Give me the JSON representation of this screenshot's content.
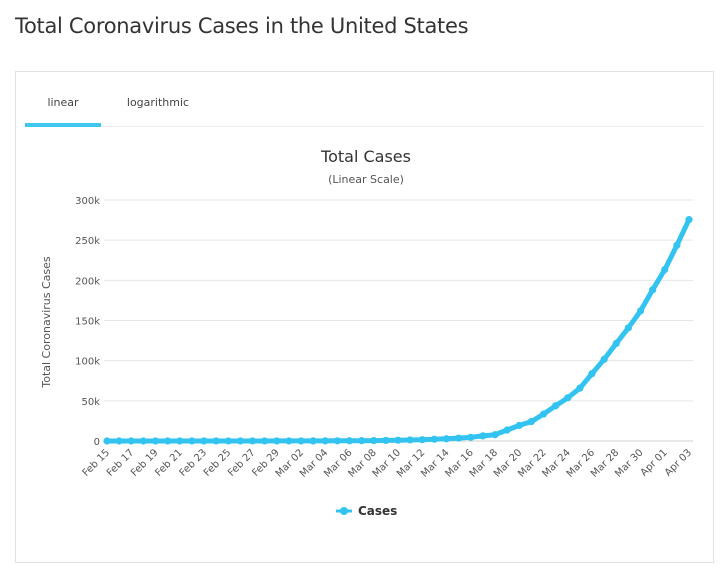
{
  "page": {
    "title": "Total Coronavirus Cases in the United States"
  },
  "tabs": [
    {
      "label": "linear",
      "active": true
    },
    {
      "label": "logarithmic",
      "active": false
    }
  ],
  "colors": {
    "series": "#33c3f0",
    "tab_active": "#3fc7ee",
    "grid": "#e6e6e6"
  },
  "chart_data": {
    "type": "line",
    "title": "Total Cases",
    "subtitle": "(Linear Scale)",
    "ylabel": "Total Coronavirus Cases",
    "xlabel": "",
    "ylim": [
      0,
      300000
    ],
    "y_ticks": [
      {
        "value": 0,
        "label": "0"
      },
      {
        "value": 50000,
        "label": "50k"
      },
      {
        "value": 100000,
        "label": "100k"
      },
      {
        "value": 150000,
        "label": "150k"
      },
      {
        "value": 200000,
        "label": "200k"
      },
      {
        "value": 250000,
        "label": "250k"
      },
      {
        "value": 300000,
        "label": "300k"
      }
    ],
    "x_tick_labels": [
      "Feb 15",
      "Feb 17",
      "Feb 19",
      "Feb 21",
      "Feb 23",
      "Feb 25",
      "Feb 27",
      "Feb 29",
      "Mar 02",
      "Mar 04",
      "Mar 06",
      "Mar 08",
      "Mar 10",
      "Mar 12",
      "Mar 14",
      "Mar 16",
      "Mar 18",
      "Mar 20",
      "Mar 22",
      "Mar 24",
      "Mar 26",
      "Mar 28",
      "Mar 30",
      "Apr 01",
      "Apr 03"
    ],
    "grid": true,
    "legend": "bottom-center",
    "categories": [
      "Feb 15",
      "Feb 16",
      "Feb 17",
      "Feb 18",
      "Feb 19",
      "Feb 20",
      "Feb 21",
      "Feb 22",
      "Feb 23",
      "Feb 24",
      "Feb 25",
      "Feb 26",
      "Feb 27",
      "Feb 28",
      "Feb 29",
      "Mar 01",
      "Mar 02",
      "Mar 03",
      "Mar 04",
      "Mar 05",
      "Mar 06",
      "Mar 07",
      "Mar 08",
      "Mar 09",
      "Mar 10",
      "Mar 11",
      "Mar 12",
      "Mar 13",
      "Mar 14",
      "Mar 15",
      "Mar 16",
      "Mar 17",
      "Mar 18",
      "Mar 19",
      "Mar 20",
      "Mar 21",
      "Mar 22",
      "Mar 23",
      "Mar 24",
      "Mar 25",
      "Mar 26",
      "Mar 27",
      "Mar 28",
      "Mar 29",
      "Mar 30",
      "Mar 31",
      "Apr 01",
      "Apr 02",
      "Apr 03"
    ],
    "series": [
      {
        "name": "Cases",
        "values": [
          15,
          15,
          15,
          15,
          15,
          15,
          35,
          35,
          35,
          53,
          57,
          60,
          60,
          62,
          68,
          75,
          100,
          124,
          158,
          221,
          319,
          435,
          541,
          704,
          994,
          1301,
          1630,
          2183,
          2770,
          3613,
          4596,
          6344,
          7787,
          13680,
          19383,
          24207,
          33546,
          43847,
          53740,
          65778,
          83836,
          101657,
          121478,
          140886,
          161807,
          188172,
          213372,
          243616,
          275586
        ]
      }
    ]
  }
}
